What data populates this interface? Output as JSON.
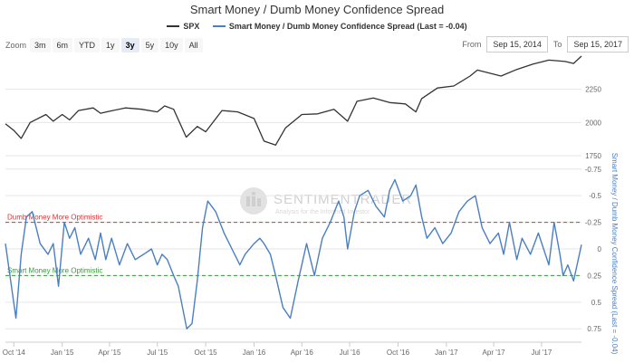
{
  "chart_data": {
    "type": "line",
    "title": "Smart Money / Dumb Money Confidence Spread",
    "legend": [
      {
        "label": "SPX",
        "color": "#333333"
      },
      {
        "label": "Smart Money / Dumb Money Confidence Spread (Last = -0.04)",
        "color": "#4a7fc1"
      }
    ],
    "zoom": {
      "label": "Zoom",
      "options": [
        "3m",
        "6m",
        "YTD",
        "1y",
        "3y",
        "5y",
        "10y",
        "All"
      ],
      "selected": "3y"
    },
    "range": {
      "from_label": "From",
      "from": "Sep 15, 2014",
      "to_label": "To",
      "to": "Sep 15, 2017"
    },
    "x_ticks": [
      "Oct '14",
      "Jan '15",
      "Apr '15",
      "Jul '15",
      "Oct '15",
      "Jan '16",
      "Apr '16",
      "Jul '16",
      "Oct '16",
      "Jan '17",
      "Apr '17",
      "Jul '17"
    ],
    "spx_axis": {
      "ticks": [
        "2250",
        "2000",
        "1750"
      ],
      "ylim": [
        1750,
        2500
      ]
    },
    "spread_axis": {
      "label": "Smart Money / Dumb Money Confidence Spread (Last = -0.04)",
      "ticks": [
        "-0.75",
        "-0.5",
        "-0.25",
        "0",
        "0.25",
        "0.5",
        "0.75"
      ],
      "ylim": [
        -0.85,
        0.85
      ],
      "reversed": true
    },
    "reference_lines": [
      {
        "label": "Dumb Money More Optimistic",
        "value": -0.25,
        "color": "#e03030"
      },
      {
        "label": "Smart Money More Optimistic",
        "value": 0.25,
        "color": "#3a9a3a"
      }
    ],
    "watermark": {
      "main": "SENTIMENTRADER",
      "sub": "Analysis for the Informed Investor"
    },
    "series": [
      {
        "name": "SPX",
        "x": [
          "2014-09-15",
          "2014-10-01",
          "2014-10-15",
          "2014-11-01",
          "2014-12-01",
          "2014-12-15",
          "2015-01-01",
          "2015-01-15",
          "2015-02-01",
          "2015-03-01",
          "2015-03-15",
          "2015-04-01",
          "2015-05-01",
          "2015-06-01",
          "2015-07-01",
          "2015-07-15",
          "2015-08-01",
          "2015-08-25",
          "2015-09-15",
          "2015-10-01",
          "2015-11-01",
          "2015-12-01",
          "2016-01-01",
          "2016-01-20",
          "2016-02-11",
          "2016-03-01",
          "2016-04-01",
          "2016-05-01",
          "2016-06-01",
          "2016-06-27",
          "2016-07-15",
          "2016-08-15",
          "2016-09-15",
          "2016-10-15",
          "2016-11-04",
          "2016-11-15",
          "2016-12-15",
          "2017-01-15",
          "2017-02-15",
          "2017-03-01",
          "2017-04-15",
          "2017-05-15",
          "2017-06-15",
          "2017-07-15",
          "2017-08-15",
          "2017-08-31",
          "2017-09-15"
        ],
        "values": [
          1990,
          1940,
          1880,
          2000,
          2060,
          2010,
          2060,
          2020,
          2090,
          2110,
          2070,
          2085,
          2110,
          2100,
          2080,
          2125,
          2100,
          1890,
          1970,
          1930,
          2090,
          2080,
          2030,
          1860,
          1830,
          1960,
          2060,
          2065,
          2100,
          2010,
          2160,
          2185,
          2150,
          2140,
          2080,
          2180,
          2260,
          2275,
          2350,
          2395,
          2350,
          2400,
          2440,
          2470,
          2460,
          2445,
          2500
        ]
      },
      {
        "name": "Smart Money / Dumb Money Confidence Spread",
        "x": [
          "2014-09-15",
          "2014-09-25",
          "2014-10-05",
          "2014-10-15",
          "2014-10-25",
          "2014-11-05",
          "2014-11-20",
          "2014-12-05",
          "2014-12-15",
          "2014-12-25",
          "2015-01-05",
          "2015-01-15",
          "2015-01-25",
          "2015-02-05",
          "2015-02-20",
          "2015-03-05",
          "2015-03-15",
          "2015-03-25",
          "2015-04-05",
          "2015-04-20",
          "2015-05-05",
          "2015-05-20",
          "2015-06-05",
          "2015-06-20",
          "2015-07-01",
          "2015-07-10",
          "2015-07-20",
          "2015-08-01",
          "2015-08-10",
          "2015-08-20",
          "2015-08-26",
          "2015-09-05",
          "2015-09-15",
          "2015-09-25",
          "2015-10-05",
          "2015-10-20",
          "2015-11-05",
          "2015-11-20",
          "2015-12-05",
          "2015-12-15",
          "2016-01-01",
          "2016-01-12",
          "2016-01-20",
          "2016-02-01",
          "2016-02-11",
          "2016-02-25",
          "2016-03-10",
          "2016-03-25",
          "2016-04-10",
          "2016-04-25",
          "2016-05-10",
          "2016-05-25",
          "2016-06-10",
          "2016-06-20",
          "2016-06-27",
          "2016-07-10",
          "2016-07-20",
          "2016-08-05",
          "2016-08-20",
          "2016-09-05",
          "2016-09-15",
          "2016-09-25",
          "2016-10-10",
          "2016-10-25",
          "2016-11-04",
          "2016-11-15",
          "2016-11-25",
          "2016-12-10",
          "2016-12-25",
          "2017-01-10",
          "2017-01-25",
          "2017-02-10",
          "2017-02-25",
          "2017-03-10",
          "2017-03-25",
          "2017-04-10",
          "2017-04-20",
          "2017-05-01",
          "2017-05-15",
          "2017-05-25",
          "2017-06-10",
          "2017-06-25",
          "2017-07-05",
          "2017-07-15",
          "2017-07-25",
          "2017-08-05",
          "2017-08-11",
          "2017-08-20",
          "2017-08-31",
          "2017-09-15"
        ],
        "values": [
          -0.05,
          0.3,
          0.65,
          0.05,
          -0.3,
          -0.35,
          -0.05,
          0.05,
          -0.05,
          0.35,
          -0.25,
          -0.1,
          -0.2,
          0.05,
          -0.1,
          0.1,
          -0.15,
          0.1,
          -0.1,
          0.15,
          -0.05,
          0.1,
          0.05,
          0.0,
          0.15,
          0.05,
          0.1,
          0.25,
          0.35,
          0.6,
          0.75,
          0.7,
          0.3,
          -0.2,
          -0.45,
          -0.35,
          -0.15,
          0.0,
          0.15,
          0.05,
          -0.05,
          -0.1,
          -0.05,
          0.05,
          0.25,
          0.55,
          0.65,
          0.3,
          -0.05,
          0.25,
          -0.1,
          -0.25,
          -0.45,
          -0.3,
          0.0,
          -0.35,
          -0.5,
          -0.55,
          -0.4,
          -0.3,
          -0.55,
          -0.65,
          -0.45,
          -0.5,
          -0.6,
          -0.3,
          -0.1,
          -0.2,
          -0.05,
          -0.15,
          -0.35,
          -0.45,
          -0.5,
          -0.2,
          -0.05,
          -0.15,
          0.05,
          -0.25,
          0.1,
          -0.1,
          0.05,
          -0.15,
          0.0,
          0.15,
          -0.25,
          0.05,
          0.25,
          0.15,
          0.3,
          -0.04
        ]
      }
    ]
  }
}
